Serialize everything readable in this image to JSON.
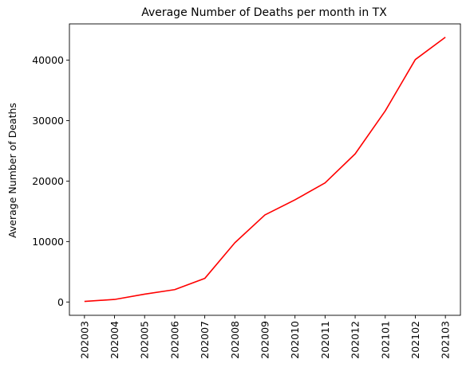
{
  "chart_data": {
    "type": "line",
    "title": "Average Number of Deaths per month in TX",
    "xlabel": "",
    "ylabel": "Average Number of Deaths",
    "categories": [
      "202003",
      "202004",
      "202005",
      "202006",
      "202007",
      "202008",
      "202009",
      "202010",
      "202011",
      "202012",
      "202101",
      "202102",
      "202103"
    ],
    "series": [
      {
        "values": [
          100,
          420,
          1300,
          2050,
          3900,
          9800,
          14400,
          16900,
          19700,
          24500,
          31600,
          40100,
          43800
        ],
        "color": "#ff0000"
      }
    ],
    "ylim": [
      -2200,
      46000
    ],
    "yticks": [
      0,
      10000,
      20000,
      30000,
      40000
    ],
    "ytick_labels": [
      "0",
      "10000",
      "20000",
      "30000",
      "40000"
    ],
    "grid": false,
    "legend": "none"
  }
}
